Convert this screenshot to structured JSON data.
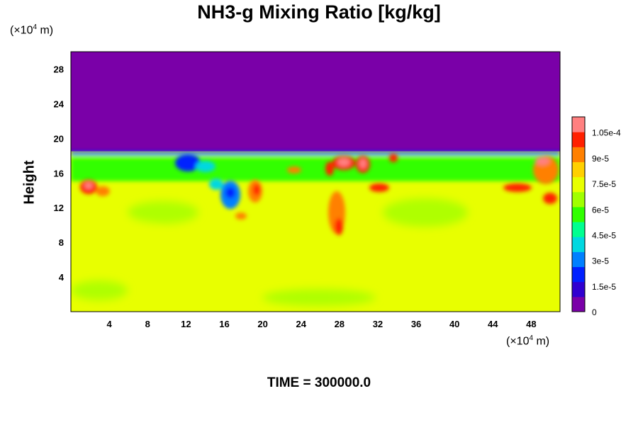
{
  "chart_data": {
    "type": "heatmap",
    "title": "NH3-g Mixing Ratio [kg/kg]",
    "ylabel": "Height",
    "x_unit_prefix": "(×10",
    "x_unit_exp": "4",
    "x_unit_suffix": " m)",
    "y_unit_prefix": "(×10",
    "y_unit_exp": "4",
    "y_unit_suffix": " m)",
    "x_ticks": [
      "4",
      "8",
      "12",
      "16",
      "20",
      "24",
      "28",
      "32",
      "36",
      "40",
      "44",
      "48"
    ],
    "x_tick_values": [
      4,
      8,
      12,
      16,
      20,
      24,
      28,
      32,
      36,
      40,
      44,
      48
    ],
    "y_ticks": [
      "4",
      "8",
      "12",
      "16",
      "20",
      "24",
      "28"
    ],
    "y_tick_values": [
      4,
      8,
      12,
      16,
      20,
      24,
      28
    ],
    "xlim": [
      0,
      51
    ],
    "ylim": [
      0,
      30
    ],
    "colorbar": {
      "labels": [
        "0",
        "1.5e-5",
        "3e-5",
        "4.5e-5",
        "6e-5",
        "7.5e-5",
        "9e-5",
        "1.05e-4"
      ],
      "values": [
        0,
        1.5e-05,
        3e-05,
        4.5e-05,
        6e-05,
        7.5e-05,
        9e-05,
        0.000105
      ],
      "range": [
        0,
        0.000114
      ],
      "colors": [
        "#7a00a8",
        "#3000d0",
        "#0020ff",
        "#0080ff",
        "#00d8e0",
        "#00ff90",
        "#30ff00",
        "#a0ff00",
        "#e8ff00",
        "#ffd000",
        "#ff8000",
        "#ff2000",
        "#ff8080"
      ]
    },
    "layers": {
      "upper_value": 0,
      "interface_height": 18.5,
      "lower_value": 7.4e-05,
      "band_value": 5.8e-05
    },
    "annotation": "TIME = 300000.0"
  }
}
